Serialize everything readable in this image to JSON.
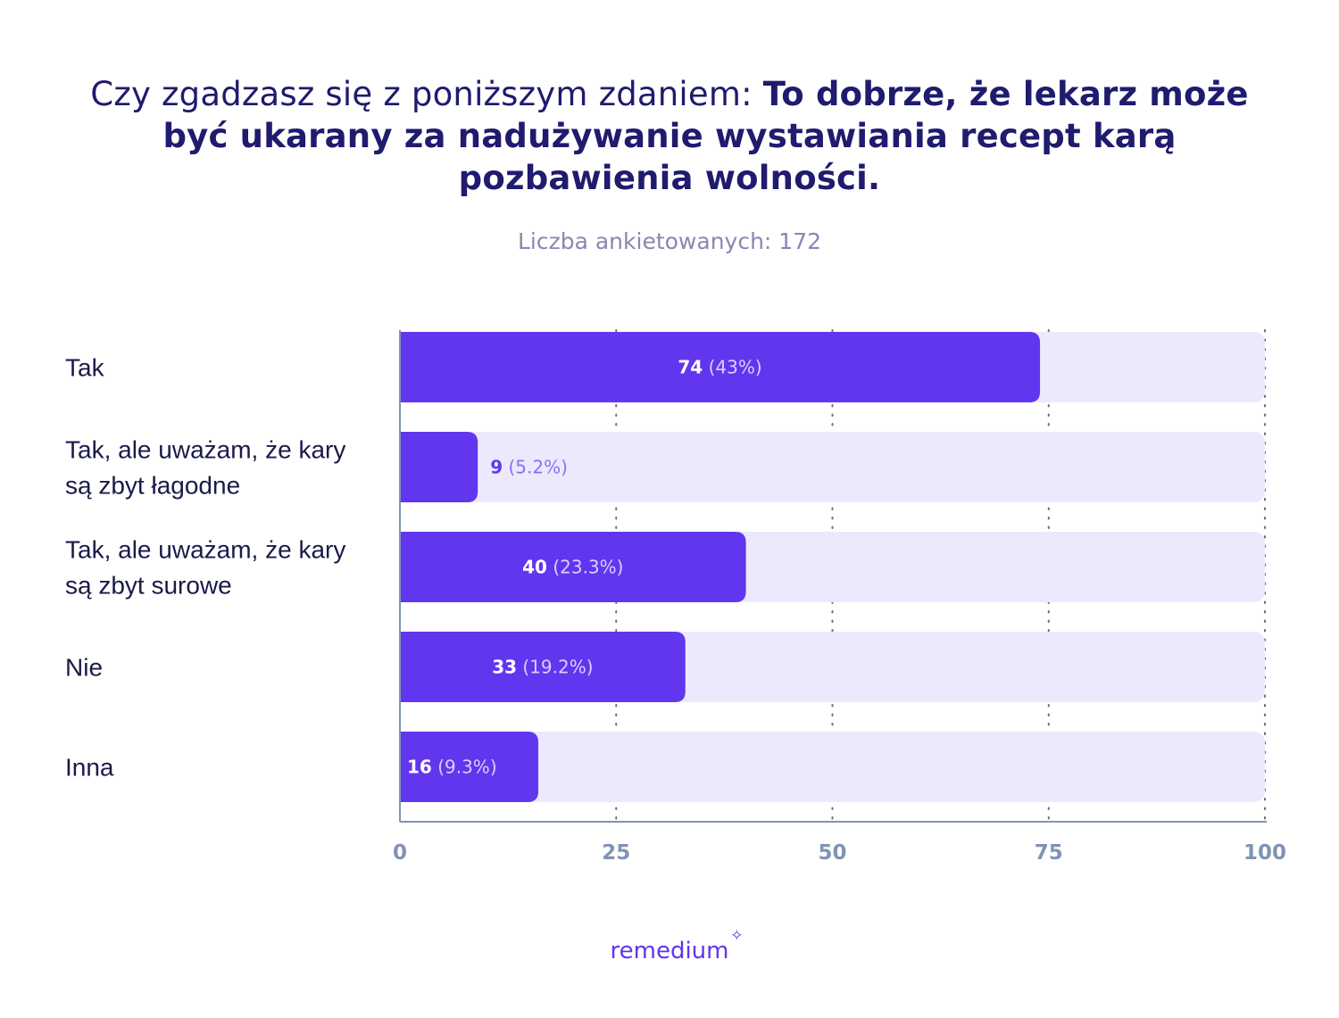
{
  "title": {
    "regular": "Czy zgadzasz się z poniższym zdaniem: ",
    "bold": "To dobrze, że lekarz może być ukarany za nadużywanie wystawiania recept karą pozbawienia wolności."
  },
  "subtitle": "Liczba ankietowanych: 172",
  "brand": "remedium",
  "colors": {
    "bar": "#6236ef",
    "track": "#ece9fd",
    "label_on_bar": "#ffffff",
    "label_off_bar": "#6236ef",
    "axis": "#7f94b3"
  },
  "chart_data": {
    "type": "bar",
    "orientation": "horizontal",
    "categories": [
      [
        "Tak"
      ],
      [
        "Tak, ale uważam, że kary",
        "są zbyt łagodne"
      ],
      [
        "Tak, ale uważam, że kary",
        "są zbyt surowe"
      ],
      [
        "Nie"
      ],
      [
        "Inna"
      ]
    ],
    "values": [
      74,
      9,
      40,
      33,
      16
    ],
    "value_labels": [
      "74",
      "9",
      "40",
      "33",
      "16"
    ],
    "percent_labels": [
      "(43%)",
      "(5.2%)",
      "(23.3%)",
      "(19.2%)",
      "(9.3%)"
    ],
    "xlim": [
      0,
      100
    ],
    "xticks": [
      "0",
      "25",
      "50",
      "75",
      "100"
    ],
    "grid": "vertical dotted"
  }
}
